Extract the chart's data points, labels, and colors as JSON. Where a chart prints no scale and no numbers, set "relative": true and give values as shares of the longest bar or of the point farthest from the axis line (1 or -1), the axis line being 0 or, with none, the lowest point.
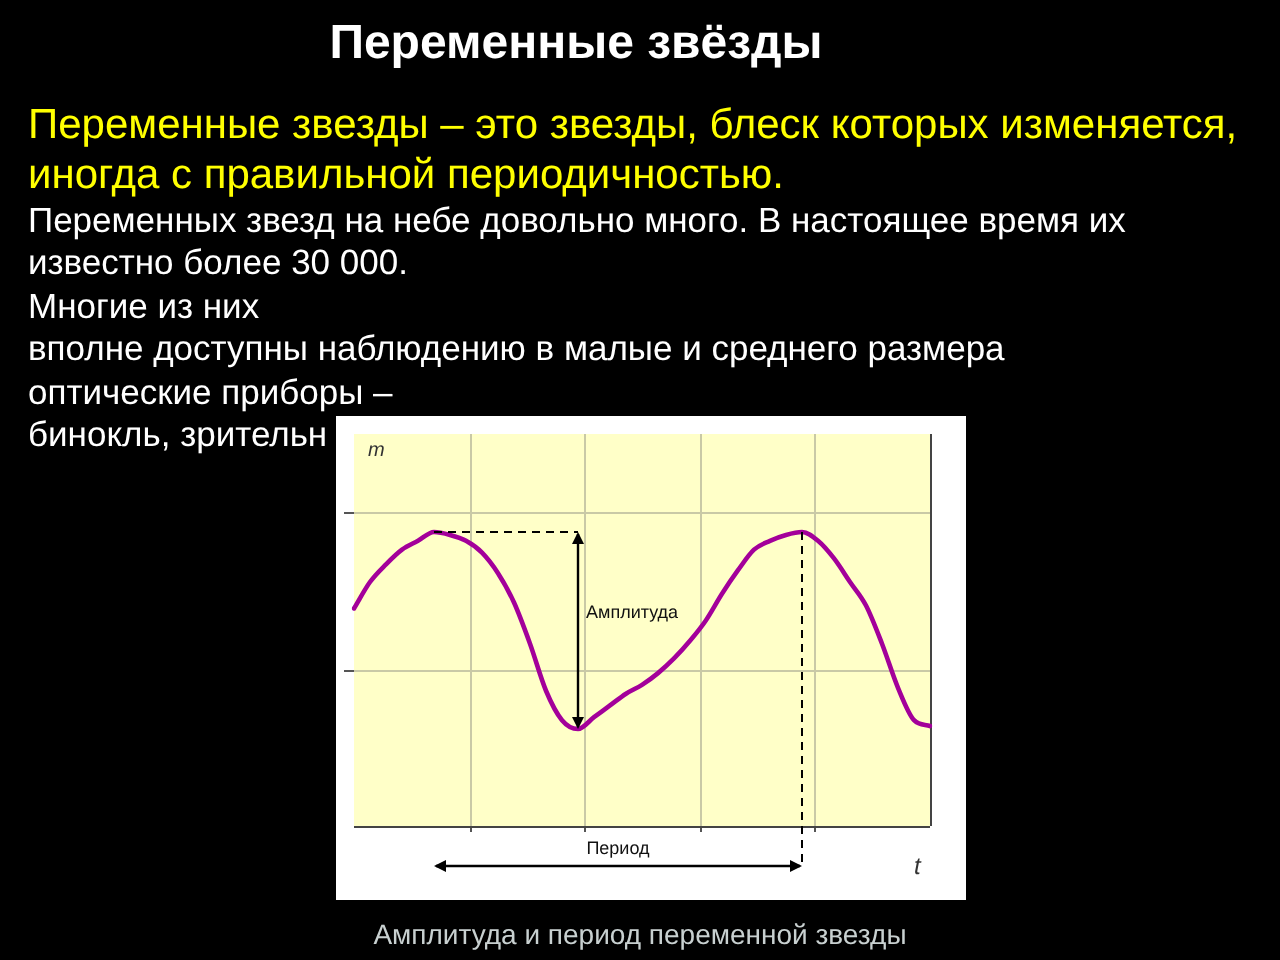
{
  "chart_data": {
    "type": "line",
    "title": "Переменные звёзды",
    "subtitle": "Переменные звезды – это звезды, блеск которых изменяется, иногда с правильной периодичностью.",
    "xlabel": "t",
    "ylabel": "m",
    "categories": [
      null,
      null,
      null,
      null,
      null,
      null,
      null,
      null,
      null,
      null,
      null,
      null,
      null,
      null,
      null,
      null,
      null,
      null,
      null,
      null,
      null,
      null,
      null,
      null,
      null,
      null,
      null,
      null,
      null,
      null,
      null,
      null,
      null,
      null,
      null,
      null,
      null
    ],
    "values": [
      0.74,
      0.83,
      0.89,
      0.94,
      0.97,
      1.0,
      0.99,
      0.97,
      0.93,
      0.86,
      0.76,
      0.62,
      0.46,
      0.36,
      0.33,
      0.37,
      0.41,
      0.45,
      0.48,
      0.52,
      0.57,
      0.63,
      0.7,
      0.79,
      0.87,
      0.94,
      0.97,
      0.99,
      1.0,
      0.97,
      0.91,
      0.83,
      0.75,
      0.62,
      0.47,
      0.36,
      0.34
    ],
    "color": "#a3009a",
    "relative": true,
    "grid": true,
    "annotations": [
      "Переменных звезд на небе довольно много. В настоящее время их",
      "известно более 30 000.",
      "Многие из них",
      "вполне доступны наблюдению в малые и среднего размера",
      "оптические приборы –",
      "бинокль, зрительн",
      "Амплитуда",
      "Период",
      "Амплитуда и период переменной звезды"
    ]
  }
}
